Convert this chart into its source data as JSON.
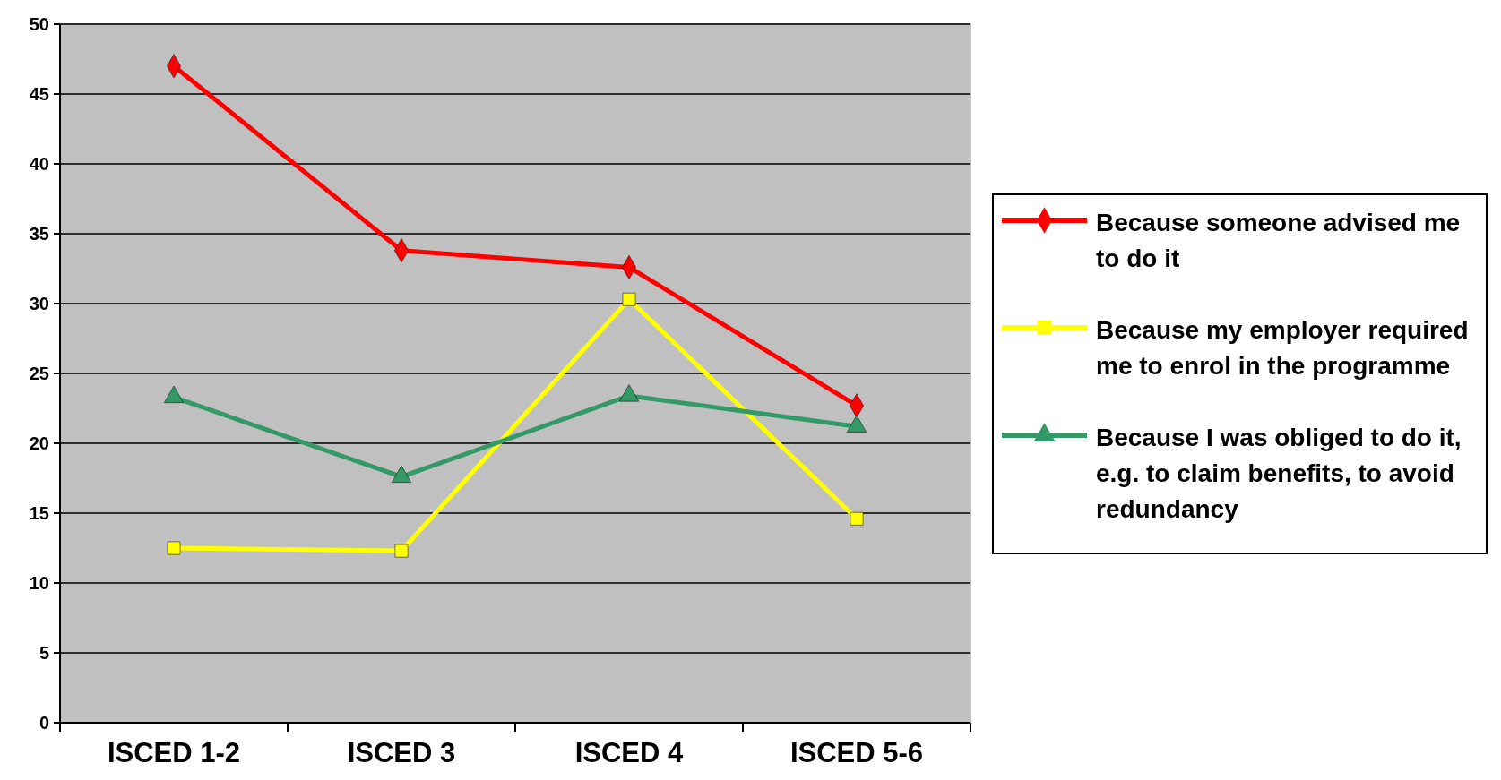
{
  "chart_data": {
    "type": "line",
    "categories": [
      "ISCED 1-2",
      "ISCED 3",
      "ISCED 4",
      "ISCED 5-6"
    ],
    "ylim": [
      0,
      50
    ],
    "yticks": [
      0,
      5,
      10,
      15,
      20,
      25,
      30,
      35,
      40,
      45,
      50
    ],
    "grid": "y",
    "legend": "right",
    "series": [
      {
        "name": "Because someone advised me to do it",
        "color": "#ff0000",
        "marker": "diamond",
        "values": [
          47,
          33.8,
          32.6,
          22.7
        ]
      },
      {
        "name": "Because my employer required me to enrol in the programme",
        "color": "#ffff00",
        "marker": "square",
        "values": [
          12.5,
          12.3,
          30.3,
          14.6
        ]
      },
      {
        "name": "Because I was obliged to do it, e.g. to claim benefits, to avoid redundancy",
        "color": "#339966",
        "marker": "triangle",
        "values": [
          23.3,
          17.6,
          23.4,
          21.2
        ]
      }
    ]
  }
}
